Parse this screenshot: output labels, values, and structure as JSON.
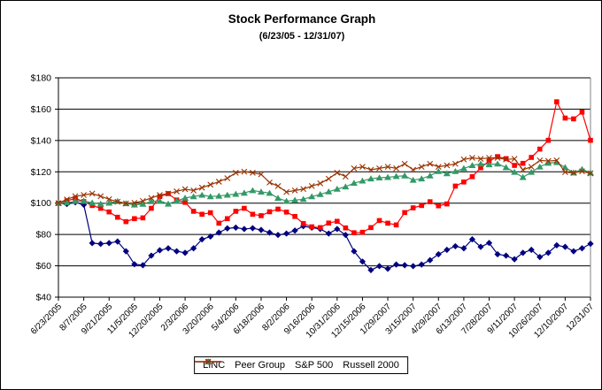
{
  "chart_data": {
    "type": "line",
    "title": "Stock Performance Graph",
    "subtitle": "(6/23/05 - 12/31/07)",
    "ylim": [
      40,
      180
    ],
    "y_step": 20,
    "y_tick_labels": [
      "$180",
      "$160",
      "$140",
      "$120",
      "$100",
      "$80",
      "$60",
      "$40"
    ],
    "y_tick_prefix": "$",
    "grid": true,
    "legend_position": "bottom",
    "x_tick_labels": [
      "6/23/2005",
      "8/7/2005",
      "9/21/2005",
      "11/5/2005",
      "12/20/2005",
      "2/3/2006",
      "3/20/2006",
      "5/4/2006",
      "6/18/2006",
      "8/2/2006",
      "9/16/2006",
      "10/31/2006",
      "12/15/2006",
      "1/29/2007",
      "3/15/2007",
      "4/29/2007",
      "6/13/2007",
      "7/28/2007",
      "9/11/2007",
      "10/26/2007",
      "12/10/2007",
      "12/31/07"
    ],
    "x_tick_point_indices": [
      0,
      3,
      6,
      9,
      12,
      15,
      18,
      21,
      24,
      27,
      30,
      33,
      36,
      39,
      42,
      45,
      48,
      51,
      54,
      57,
      60,
      63
    ],
    "series": [
      {
        "name": "LINC",
        "color": "#000080",
        "marker": "diamond",
        "values": [
          100,
          99.5,
          100.5,
          99,
          74.5,
          74,
          74.5,
          75.5,
          69.3,
          61,
          60.4,
          66.5,
          69.9,
          71.2,
          69.3,
          68.3,
          71.2,
          76.9,
          78.7,
          81.2,
          83.9,
          84.4,
          83.5,
          84,
          82.9,
          81.2,
          79.7,
          80.6,
          82.5,
          85.3,
          84.4,
          83.5,
          80.6,
          83.5,
          79.7,
          69.3,
          62.7,
          57.3,
          59.8,
          58.1,
          60.8,
          60.4,
          59.8,
          60.8,
          63.6,
          67.4,
          70.2,
          72.5,
          71.2,
          76.9,
          72.1,
          74.6,
          67.4,
          66.5,
          64.2,
          68.3,
          70.2,
          65.6,
          68.3,
          73.1,
          72.1,
          69.3,
          71.2,
          74.1
        ]
      },
      {
        "name": "Peer Group",
        "color": "#FF0000",
        "marker": "square",
        "values": [
          100,
          101.5,
          103,
          101,
          98.5,
          96.7,
          94.4,
          91,
          88.2,
          90.1,
          90.6,
          96.7,
          104.2,
          106.1,
          102,
          100.5,
          94.8,
          92.9,
          93.9,
          87.2,
          90.1,
          94.8,
          96.7,
          92.9,
          92,
          94.5,
          96.2,
          94.3,
          91.5,
          87,
          84.9,
          84.4,
          87.3,
          88.4,
          84.2,
          81.1,
          81.4,
          84.4,
          88.9,
          87.2,
          86.1,
          94,
          97,
          98.5,
          100.9,
          98.3,
          99.5,
          110.9,
          113.5,
          116.9,
          122.6,
          126.9,
          129.7,
          128.4,
          124.1,
          125.4,
          129.2,
          134.5,
          140.1,
          164.7,
          154.3,
          153.8,
          158.1,
          140.1
        ]
      },
      {
        "name": "S&P 500",
        "color": "#339966",
        "marker": "triangle",
        "values": [
          100,
          100.3,
          101.2,
          101.4,
          100.2,
          99.5,
          100.1,
          101.2,
          99.8,
          98.9,
          99.4,
          101.1,
          101.4,
          99.5,
          101.4,
          103.3,
          104.2,
          105.2,
          104.2,
          104.6,
          105.2,
          105.8,
          106.5,
          108.1,
          107.2,
          106.4,
          103.2,
          101.3,
          101.9,
          102.5,
          104.2,
          105.6,
          107.3,
          109,
          110.5,
          112.8,
          114.2,
          115.6,
          116.2,
          116.5,
          117.1,
          117.5,
          114.7,
          115.6,
          117.5,
          120.3,
          118.9,
          120.3,
          122.2,
          124.1,
          125.1,
          124.6,
          125.1,
          122.8,
          119.8,
          116.5,
          119.8,
          123.2,
          125.6,
          126,
          122.8,
          119.4,
          121.6,
          119.4
        ]
      },
      {
        "name": "Russell 2000",
        "color": "#993300",
        "marker": "x",
        "values": [
          100,
          102.4,
          104.4,
          105.2,
          106.1,
          104.4,
          102.5,
          100.9,
          99.8,
          100.2,
          101.4,
          103.3,
          105.2,
          106.1,
          107.5,
          108.9,
          108.1,
          109.9,
          111.8,
          113.7,
          115.9,
          119.4,
          120.1,
          119.4,
          118.4,
          113.2,
          110.9,
          107.1,
          108.1,
          109,
          110.9,
          112.6,
          115.6,
          119.4,
          117,
          122.2,
          123.2,
          121.3,
          122.2,
          123.2,
          122.2,
          125.1,
          121.3,
          123.2,
          125.1,
          123.2,
          124.1,
          125.1,
          127.9,
          128.9,
          128.3,
          128.9,
          128.9,
          127.9,
          128.3,
          121.3,
          123.2,
          127.3,
          126.9,
          127.3,
          119.8,
          119.4,
          120.3,
          119
        ]
      }
    ]
  }
}
